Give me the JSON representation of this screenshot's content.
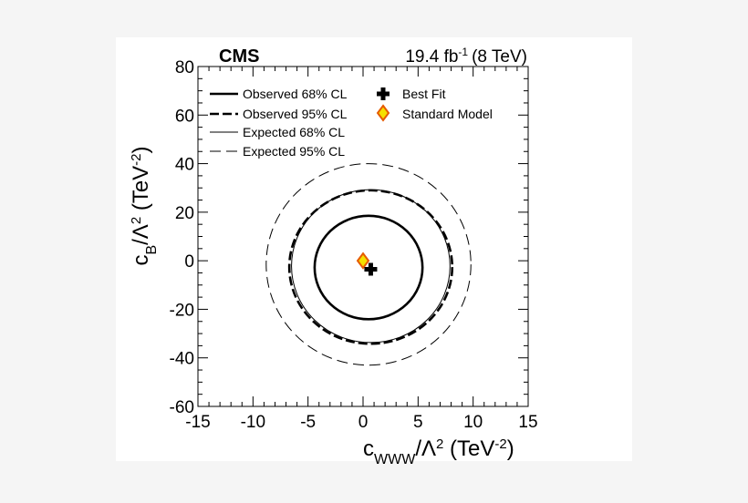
{
  "chart_data": {
    "type": "contour",
    "experiment": "CMS",
    "luminosity": "19.4 fb",
    "luminosity_exp": "-1",
    "energy": "(8 TeV)",
    "xlabel": {
      "base": "c",
      "sub": "WWW",
      "mid": "/Λ",
      "sup": "2",
      "unit_open": " (TeV",
      "unit_sup": "-2",
      "unit_close": ")"
    },
    "ylabel": {
      "base": "c",
      "sub": "B",
      "mid": "/Λ",
      "sup": "2",
      "unit_open": " (TeV",
      "unit_sup": "-2",
      "unit_close": ")"
    },
    "xlim": [
      -15,
      15
    ],
    "ylim": [
      -60,
      80
    ],
    "xticks": [
      -15,
      -10,
      -5,
      0,
      5,
      10,
      15
    ],
    "yticks": [
      -60,
      -40,
      -20,
      0,
      20,
      40,
      60,
      80
    ],
    "grid": false,
    "legend_position": "top",
    "legend": {
      "obs68": "Observed 68% CL",
      "obs95": "Observed 95% CL",
      "exp68": "Expected 68% CL",
      "exp95": "Expected 95% CL",
      "best_fit": "Best Fit",
      "sm": "Standard Model"
    },
    "contours": [
      {
        "key": "exp95",
        "cx": 0.5,
        "cy": -1.5,
        "rx": 9.3,
        "ry": 41.5,
        "style": "thin-dashed"
      },
      {
        "key": "exp68",
        "cx": 0.7,
        "cy": -2.2,
        "rx": 7.2,
        "ry": 31.5,
        "style": "thin-solid"
      },
      {
        "key": "obs95",
        "cx": 0.7,
        "cy": -2.6,
        "rx": 7.4,
        "ry": 31.6,
        "style": "thick-dashed"
      },
      {
        "key": "obs68",
        "cx": 0.5,
        "cy": -2.8,
        "rx": 4.9,
        "ry": 21.3,
        "style": "thick-solid"
      }
    ],
    "best_fit": {
      "x": 0.7,
      "y": -3.5
    },
    "standard_model": {
      "x": 0,
      "y": 0
    }
  }
}
